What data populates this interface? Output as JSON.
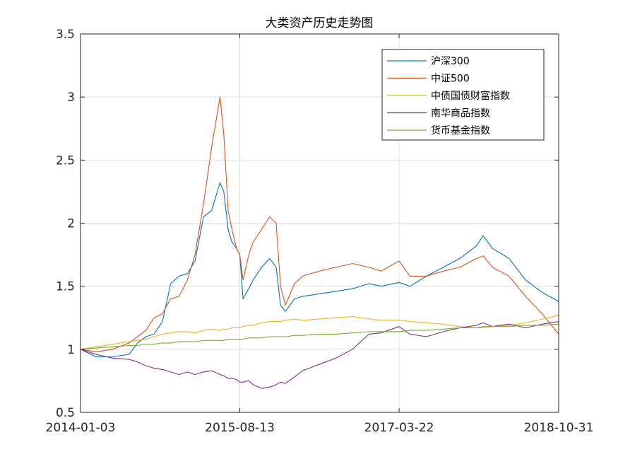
{
  "chart_data": {
    "type": "line",
    "title": "大类资产历史走势图",
    "xlabel": "",
    "ylabel": "",
    "x_ticks": [
      "2014-01-03",
      "2015-08-13",
      "2017-03-22",
      "2018-10-31"
    ],
    "x_range": [
      "2014-01-03",
      "2018-10-31"
    ],
    "ylim": [
      0.5,
      3.5
    ],
    "y_ticks": [
      "0.5",
      "1",
      "1.5",
      "2",
      "2.5",
      "3",
      "3.5"
    ],
    "grid": true,
    "legend_position": "top-right",
    "x": [
      "2014-01-03",
      "2014-03-01",
      "2014-05-01",
      "2014-07-01",
      "2014-08-01",
      "2014-09-01",
      "2014-10-01",
      "2014-11-01",
      "2014-12-01",
      "2015-01-01",
      "2015-02-01",
      "2015-03-01",
      "2015-04-01",
      "2015-05-01",
      "2015-06-01",
      "2015-06-15",
      "2015-07-01",
      "2015-07-15",
      "2015-08-01",
      "2015-08-13",
      "2015-08-25",
      "2015-09-15",
      "2015-10-01",
      "2015-11-01",
      "2015-12-01",
      "2015-12-25",
      "2016-01-10",
      "2016-01-28",
      "2016-03-01",
      "2016-04-01",
      "2016-06-01",
      "2016-08-01",
      "2016-10-01",
      "2016-12-01",
      "2017-01-15",
      "2017-03-22",
      "2017-05-01",
      "2017-07-01",
      "2017-09-01",
      "2017-11-01",
      "2018-01-01",
      "2018-01-26",
      "2018-03-01",
      "2018-05-01",
      "2018-07-01",
      "2018-09-01",
      "2018-10-31"
    ],
    "series": [
      {
        "name": "沪深300",
        "color": "#0072BD",
        "values": [
          1.0,
          0.94,
          0.94,
          0.96,
          1.05,
          1.1,
          1.12,
          1.22,
          1.52,
          1.58,
          1.6,
          1.7,
          2.05,
          2.1,
          2.32,
          2.25,
          1.95,
          1.85,
          1.8,
          1.75,
          1.4,
          1.48,
          1.55,
          1.65,
          1.72,
          1.65,
          1.35,
          1.3,
          1.4,
          1.42,
          1.44,
          1.46,
          1.48,
          1.52,
          1.5,
          1.53,
          1.5,
          1.58,
          1.65,
          1.72,
          1.82,
          1.9,
          1.8,
          1.72,
          1.55,
          1.45,
          1.38
        ]
      },
      {
        "name": "中证500",
        "color": "#D95319",
        "values": [
          1.0,
          0.98,
          1.0,
          1.05,
          1.1,
          1.15,
          1.25,
          1.28,
          1.4,
          1.42,
          1.55,
          1.75,
          2.15,
          2.6,
          3.0,
          2.7,
          2.1,
          1.95,
          1.8,
          1.75,
          1.55,
          1.75,
          1.85,
          1.95,
          2.05,
          2.0,
          1.5,
          1.35,
          1.52,
          1.58,
          1.62,
          1.65,
          1.68,
          1.65,
          1.62,
          1.7,
          1.58,
          1.58,
          1.62,
          1.65,
          1.72,
          1.74,
          1.65,
          1.58,
          1.42,
          1.28,
          1.12
        ]
      },
      {
        "name": "中债国债财富指数",
        "color": "#EDB120",
        "values": [
          1.0,
          1.02,
          1.04,
          1.06,
          1.07,
          1.08,
          1.1,
          1.12,
          1.13,
          1.14,
          1.14,
          1.13,
          1.15,
          1.16,
          1.15,
          1.16,
          1.16,
          1.17,
          1.17,
          1.17,
          1.18,
          1.19,
          1.19,
          1.21,
          1.22,
          1.22,
          1.22,
          1.23,
          1.24,
          1.23,
          1.24,
          1.25,
          1.26,
          1.24,
          1.23,
          1.23,
          1.22,
          1.21,
          1.2,
          1.18,
          1.17,
          1.17,
          1.18,
          1.19,
          1.21,
          1.24,
          1.27
        ]
      },
      {
        "name": "南华商品指数",
        "color": "#7E2F8E",
        "values": [
          1.0,
          0.96,
          0.93,
          0.92,
          0.9,
          0.87,
          0.85,
          0.84,
          0.82,
          0.8,
          0.82,
          0.8,
          0.82,
          0.83,
          0.8,
          0.79,
          0.77,
          0.77,
          0.76,
          0.74,
          0.74,
          0.75,
          0.72,
          0.69,
          0.7,
          0.72,
          0.74,
          0.73,
          0.78,
          0.83,
          0.88,
          0.93,
          1.0,
          1.12,
          1.13,
          1.18,
          1.12,
          1.1,
          1.14,
          1.17,
          1.19,
          1.21,
          1.18,
          1.2,
          1.17,
          1.2,
          1.22
        ]
      },
      {
        "name": "货币基金指数",
        "color": "#77AC30",
        "values": [
          1.0,
          1.01,
          1.02,
          1.03,
          1.03,
          1.04,
          1.04,
          1.05,
          1.05,
          1.06,
          1.06,
          1.06,
          1.07,
          1.07,
          1.07,
          1.07,
          1.08,
          1.08,
          1.08,
          1.08,
          1.08,
          1.09,
          1.09,
          1.09,
          1.1,
          1.1,
          1.1,
          1.1,
          1.11,
          1.11,
          1.12,
          1.12,
          1.13,
          1.14,
          1.14,
          1.14,
          1.15,
          1.15,
          1.16,
          1.17,
          1.17,
          1.18,
          1.18,
          1.18,
          1.19,
          1.19,
          1.2
        ]
      }
    ]
  }
}
